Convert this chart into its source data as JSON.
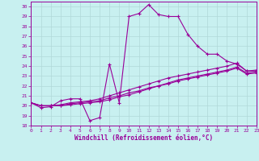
{
  "xlabel": "Windchill (Refroidissement éolien,°C)",
  "background_color": "#c8f0f0",
  "grid_color": "#b0d8d8",
  "line_color": "#990099",
  "xlim": [
    0,
    23
  ],
  "ylim": [
    18,
    30.5
  ],
  "xticks": [
    0,
    1,
    2,
    3,
    4,
    5,
    6,
    7,
    8,
    9,
    10,
    11,
    12,
    13,
    14,
    15,
    16,
    17,
    18,
    19,
    20,
    21,
    22,
    23
  ],
  "yticks": [
    18,
    19,
    20,
    21,
    22,
    23,
    24,
    25,
    26,
    27,
    28,
    29,
    30
  ],
  "series": [
    {
      "x": [
        0,
        1,
        2,
        3,
        4,
        5,
        6,
        7,
        8,
        9,
        10,
        11,
        12,
        13,
        14,
        15,
        16,
        17,
        18,
        19,
        20,
        21,
        22,
        23
      ],
      "y": [
        20.3,
        19.8,
        19.9,
        20.5,
        20.7,
        20.7,
        18.5,
        18.8,
        24.2,
        20.3,
        29.0,
        29.3,
        30.2,
        29.2,
        29.0,
        29.0,
        27.2,
        26.0,
        25.2,
        25.2,
        24.5,
        24.2,
        23.5,
        23.5
      ]
    },
    {
      "x": [
        0,
        1,
        2,
        3,
        4,
        5,
        6,
        7,
        8,
        9,
        10,
        11,
        12,
        13,
        14,
        15,
        16,
        17,
        18,
        19,
        20,
        21,
        22,
        23
      ],
      "y": [
        20.3,
        20.0,
        20.0,
        20.1,
        20.3,
        20.4,
        20.5,
        20.7,
        21.0,
        21.3,
        21.6,
        21.9,
        22.2,
        22.5,
        22.8,
        23.0,
        23.2,
        23.4,
        23.6,
        23.8,
        24.0,
        24.3,
        23.5,
        23.6
      ]
    },
    {
      "x": [
        0,
        1,
        2,
        3,
        4,
        5,
        6,
        7,
        8,
        9,
        10,
        11,
        12,
        13,
        14,
        15,
        16,
        17,
        18,
        19,
        20,
        21,
        22,
        23
      ],
      "y": [
        20.3,
        20.0,
        20.0,
        20.0,
        20.2,
        20.3,
        20.4,
        20.5,
        20.8,
        21.0,
        21.3,
        21.5,
        21.8,
        22.0,
        22.3,
        22.6,
        22.8,
        23.0,
        23.2,
        23.4,
        23.6,
        23.9,
        23.3,
        23.4
      ]
    },
    {
      "x": [
        0,
        1,
        2,
        3,
        4,
        5,
        6,
        7,
        8,
        9,
        10,
        11,
        12,
        13,
        14,
        15,
        16,
        17,
        18,
        19,
        20,
        21,
        22,
        23
      ],
      "y": [
        20.3,
        20.0,
        20.0,
        20.0,
        20.1,
        20.2,
        20.3,
        20.4,
        20.6,
        20.9,
        21.1,
        21.4,
        21.7,
        22.0,
        22.2,
        22.5,
        22.7,
        22.9,
        23.1,
        23.3,
        23.5,
        23.8,
        23.2,
        23.3
      ]
    }
  ]
}
